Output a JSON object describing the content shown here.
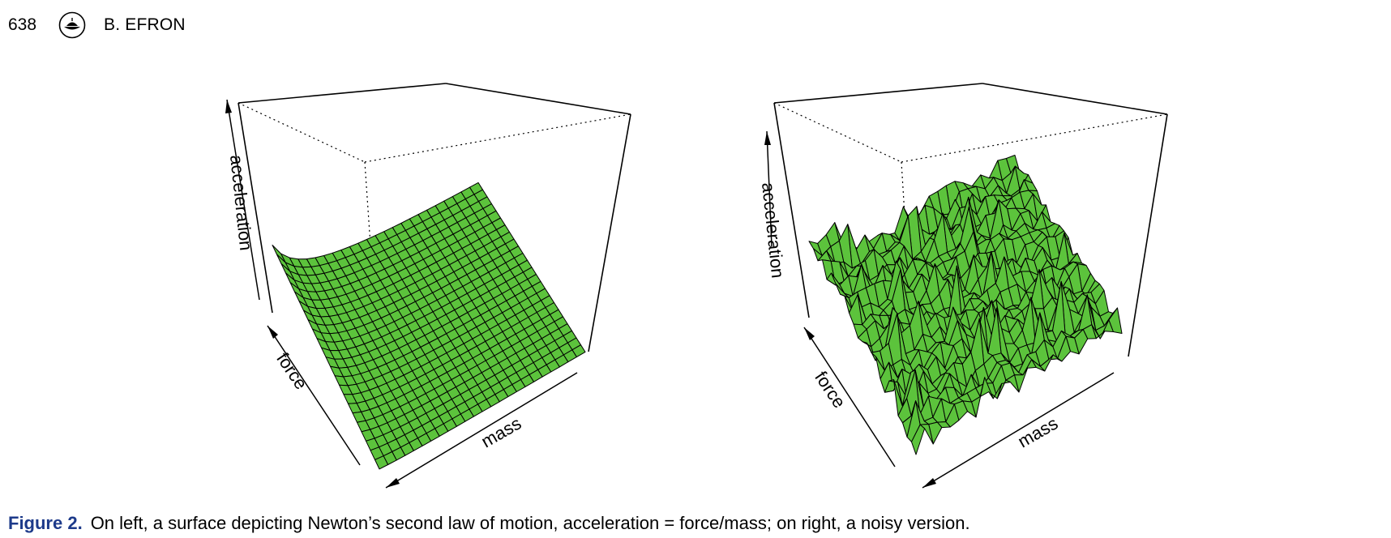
{
  "header": {
    "page_number": "638",
    "running_head": "B. EFRON",
    "logo_icon": "publisher-seal-icon"
  },
  "caption": {
    "label": "Figure 2.",
    "text": "On left, a surface depicting Newton’s second law of motion, acceleration = force/mass; on right, a noisy version."
  },
  "colors": {
    "surface_fill": "#5cc33c",
    "mesh_line": "#000000",
    "caption_label": "#1d3a8a"
  },
  "chart_data": [
    {
      "type": "surface",
      "xlabel": "mass",
      "ylabel": "force",
      "zlabel": "acceleration",
      "formula": "acceleration = force/mass",
      "grid_lines": "dotted back box",
      "fill_color": "#5cc33c"
    },
    {
      "type": "surface",
      "xlabel": "mass",
      "ylabel": "force",
      "zlabel": "acceleration",
      "formula": "acceleration = force/mass + noise",
      "grid_lines": "dotted back box",
      "fill_color": "#5cc33c"
    }
  ]
}
